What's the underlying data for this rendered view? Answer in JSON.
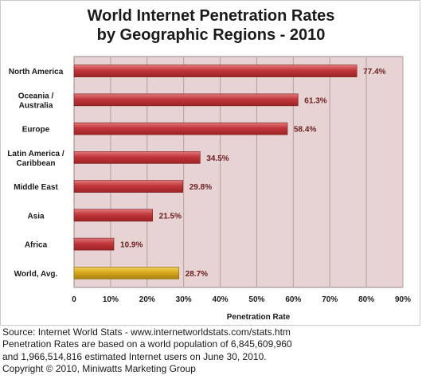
{
  "chart_data": {
    "type": "bar",
    "orientation": "horizontal",
    "title": [
      "World Internet Penetration Rates",
      "by Geographic Regions - 2010"
    ],
    "categories": [
      [
        "North America"
      ],
      [
        "Oceania  /",
        "Australia"
      ],
      [
        "Europe"
      ],
      [
        "Latin America /",
        "Caribbean"
      ],
      [
        "Middle East"
      ],
      [
        "Asia"
      ],
      [
        "Africa"
      ],
      [
        "World, Avg."
      ]
    ],
    "values": [
      77.4,
      61.3,
      58.4,
      34.5,
      29.8,
      21.5,
      10.9,
      28.7
    ],
    "value_labels": [
      "77.4%",
      "61.3%",
      "58.4%",
      "34.5%",
      "29.8%",
      "21.5%",
      "10.9%",
      "28.7%"
    ],
    "xlabel": "Penetration Rate",
    "xlim": [
      0,
      90
    ],
    "x_ticks": [
      0,
      10,
      20,
      30,
      40,
      50,
      60,
      70,
      80,
      90
    ],
    "x_tick_labels": [
      "0",
      "10%",
      "20%",
      "30%",
      "40%",
      "50%",
      "60%",
      "70%",
      "80%",
      "90%"
    ],
    "grid": "vertical",
    "legend": "none",
    "colors": {
      "bar": "#c2363a",
      "highlight_bar": "#d8aa1c",
      "plot_background": "#e7d3d3",
      "gridline": "#b99d9d",
      "value_label": "#6b1e1e"
    },
    "highlight_index": 7
  },
  "source_notes": [
    "Source: Internet World Stats - www.internetworldstats.com/stats.htm",
    "Penetration Rates are based on a world population of 6,845,609,960",
    "and 1,966,514,816 estimated Internet users on June 30, 2010.",
    "Copyright © 2010, Miniwatts Marketing Group"
  ]
}
